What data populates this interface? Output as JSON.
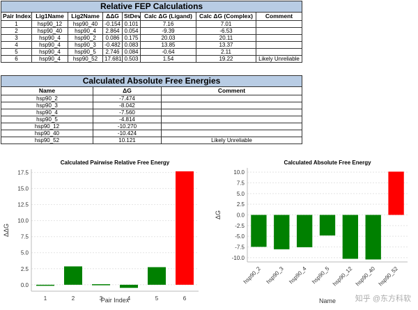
{
  "fep_table": {
    "title": "Relative FEP Calculations",
    "headers": [
      "Pair Index",
      "Lig1Name",
      "Lig2Name",
      "ΔΔG",
      "StDev",
      "Calc ΔG (Ligand)",
      "Calc ΔG (Complex)",
      "Comment"
    ],
    "rows": [
      [
        "1",
        "hsp90_12",
        "hsp90_40",
        "-0.154",
        "0.101",
        "7.16",
        "7.01",
        ""
      ],
      [
        "2",
        "hsp90_40",
        "hsp90_4",
        "2.864",
        "0.054",
        "-9.39",
        "-6.53",
        ""
      ],
      [
        "3",
        "hsp90_4",
        "hsp90_2",
        "0.086",
        "0.175",
        "20.03",
        "20.11",
        ""
      ],
      [
        "4",
        "hsp90_4",
        "hsp90_3",
        "-0.482",
        "0.083",
        "13.85",
        "13.37",
        ""
      ],
      [
        "5",
        "hsp90_4",
        "hsp90_5",
        "2.746",
        "0.084",
        "-0.64",
        "2.11",
        ""
      ],
      [
        "6",
        "hsp90_4",
        "hsp90_52",
        "17.681",
        "0.503",
        "1.54",
        "19.22",
        "Likely Unreliable"
      ]
    ]
  },
  "abs_table": {
    "title": "Calculated Absolute Free Energies",
    "headers": [
      "Name",
      "ΔG",
      "Comment"
    ],
    "rows": [
      [
        "hsp90_2",
        "-7.474",
        ""
      ],
      [
        "hsp90_3",
        "-8.042",
        ""
      ],
      [
        "hsp90_4",
        "-7.560",
        ""
      ],
      [
        "hsp90_5",
        "-4.814",
        ""
      ],
      [
        "hsp90_12",
        "-10.270",
        ""
      ],
      [
        "hsp90_40",
        "-10.424",
        ""
      ],
      [
        "hsp90_52",
        "10.121",
        "Likely Unreliable"
      ]
    ]
  },
  "chart_data": [
    {
      "type": "bar",
      "title": "Calculated Pairwise Relative Free Energy",
      "xlabel": "Pair Index",
      "ylabel": "ΔΔG",
      "categories": [
        "1",
        "2",
        "3",
        "4",
        "5",
        "6"
      ],
      "values": [
        -0.154,
        2.864,
        0.086,
        -0.482,
        2.746,
        17.681
      ],
      "colors": [
        "#008000",
        "#008000",
        "#008000",
        "#008000",
        "#008000",
        "#ff0000"
      ],
      "ylim": [
        -1,
        18
      ],
      "yticks": [
        "0.0",
        "2.5",
        "5.0",
        "7.5",
        "10.0",
        "12.5",
        "15.0",
        "17.5"
      ],
      "ytick_values": [
        0,
        2.5,
        5,
        7.5,
        10,
        12.5,
        15,
        17.5
      ]
    },
    {
      "type": "bar",
      "title": "Calculated Absolute Free Energy",
      "xlabel": "Name",
      "ylabel": "ΔG",
      "categories": [
        "hsp90_2",
        "hsp90_3",
        "hsp90_4",
        "hsp90_5",
        "hsp90_12",
        "hsp90_40",
        "hsp90_52"
      ],
      "values": [
        -7.474,
        -8.042,
        -7.56,
        -4.814,
        -10.27,
        -10.424,
        10.121
      ],
      "colors": [
        "#008000",
        "#008000",
        "#008000",
        "#008000",
        "#008000",
        "#008000",
        "#ff0000"
      ],
      "ylim": [
        -11,
        11
      ],
      "yticks": [
        "10.0",
        "7.5",
        "5.0",
        "2.5",
        "0.0",
        "-2.5",
        "-5.0",
        "-7.5",
        "-10.0"
      ],
      "ytick_values": [
        10,
        7.5,
        5,
        2.5,
        0,
        -2.5,
        -5,
        -7.5,
        -10
      ]
    }
  ],
  "watermark": "知乎 @东方科软"
}
